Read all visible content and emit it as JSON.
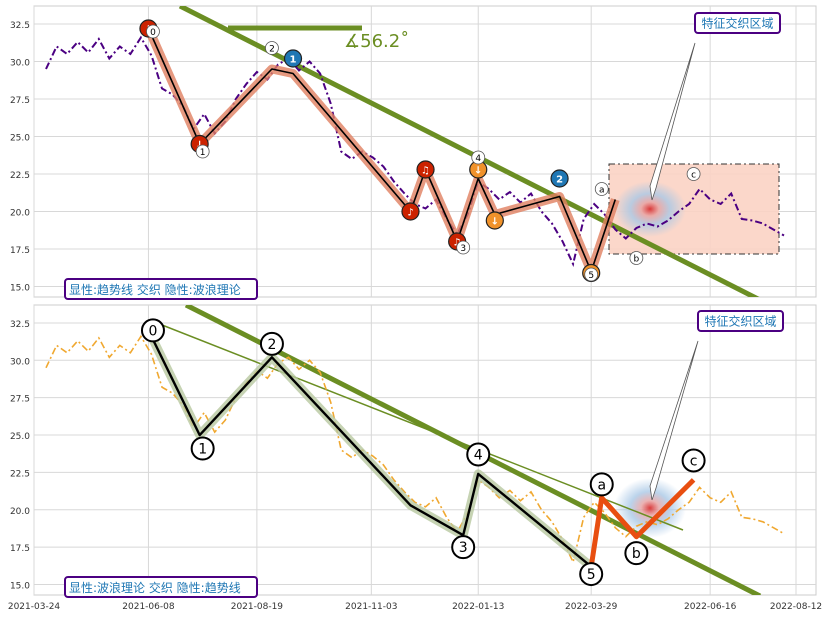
{
  "chart_data": [
    {
      "type": "line",
      "panel": "top",
      "annotation_box": "显性:趋势线 交织 隐性:波浪理论",
      "feature_label": "特征交织区域",
      "angle_label": "∡56.2˚",
      "ylim": [
        14.3,
        33.7
      ],
      "yticks": [
        "15.0",
        "17.5",
        "20.0",
        "22.5",
        "25.0",
        "27.5",
        "30.0",
        "32.5"
      ],
      "series": [
        {
          "color": "#4b0082",
          "style": "dashdot",
          "x": [
            "2021-04-01",
            "2021-04-08",
            "2021-04-15",
            "2021-04-22",
            "2021-04-29",
            "2021-05-06",
            "2021-05-13",
            "2021-05-20",
            "2021-05-27",
            "2021-06-03",
            "2021-06-10",
            "2021-06-17",
            "2021-06-24",
            "2021-07-01",
            "2021-07-08",
            "2021-07-15",
            "2021-07-22",
            "2021-07-29",
            "2021-08-05",
            "2021-08-12",
            "2021-08-19",
            "2021-08-26",
            "2021-09-02",
            "2021-09-09",
            "2021-09-16",
            "2021-09-23",
            "2021-09-30",
            "2021-10-07",
            "2021-10-14",
            "2021-10-21",
            "2021-10-28",
            "2021-11-04",
            "2021-11-11",
            "2021-11-18",
            "2021-11-25",
            "2021-12-02",
            "2021-12-09",
            "2021-12-16",
            "2021-12-23",
            "2021-12-30",
            "2022-01-06",
            "2022-01-13",
            "2022-01-20",
            "2022-01-27",
            "2022-02-03",
            "2022-02-10",
            "2022-02-17",
            "2022-02-24",
            "2022-03-03",
            "2022-03-10",
            "2022-03-17",
            "2022-03-24",
            "2022-03-31",
            "2022-04-07",
            "2022-04-14",
            "2022-04-21",
            "2022-04-28",
            "2022-05-05",
            "2022-05-12",
            "2022-05-19",
            "2022-05-26",
            "2022-06-02",
            "2022-06-09",
            "2022-06-16",
            "2022-06-23",
            "2022-06-30",
            "2022-07-07",
            "2022-07-14",
            "2022-07-21",
            "2022-07-28",
            "2022-08-04"
          ],
          "y": [
            29.5,
            31,
            30.5,
            31.3,
            30.6,
            31.5,
            30.2,
            31,
            30.5,
            31.6,
            30.4,
            28.2,
            27.8,
            27,
            25.5,
            26.5,
            25.2,
            26,
            27.5,
            28.5,
            29.3,
            28.8,
            29.8,
            30.2,
            29.4,
            30,
            29.2,
            27.2,
            24,
            23.5,
            24,
            23.6,
            23,
            22,
            21.2,
            20.5,
            20.2,
            20.8,
            19.5,
            18.5,
            19.8,
            22,
            21.5,
            20.8,
            21.3,
            20.6,
            21.2,
            20,
            19.2,
            18,
            16.5,
            19.5,
            20.5,
            19.8,
            18.8,
            18.2,
            18.9,
            19.2,
            19,
            19.4,
            20,
            20.5,
            21.5,
            20.8,
            20.5,
            21.2,
            19.5,
            19.4,
            19.2,
            18.8,
            18.4
          ]
        }
      ],
      "wave_points": [
        {
          "x": "2021-06-08",
          "y": 32.2
        },
        {
          "x": "2021-07-12",
          "y": 24.5
        },
        {
          "x": "2021-08-29",
          "y": 29.5
        },
        {
          "x": "2021-09-12",
          "y": 29.2
        },
        {
          "x": "2021-11-29",
          "y": 20.0
        },
        {
          "x": "2021-12-09",
          "y": 22.8
        },
        {
          "x": "2021-12-30",
          "y": 18.0
        },
        {
          "x": "2022-01-13",
          "y": 22.2
        },
        {
          "x": "2022-01-24",
          "y": 19.8
        },
        {
          "x": "2022-03-08",
          "y": 21.0
        },
        {
          "x": "2022-03-29",
          "y": 16.0
        },
        {
          "x": "2022-04-14",
          "y": 20.8
        }
      ],
      "badges": [
        {
          "x": "2021-06-08",
          "y": 32.2,
          "icon": "down-arrow-icon",
          "text": "↓",
          "color": "#cc2200"
        },
        {
          "x": "2021-07-12",
          "y": 24.5,
          "icon": "down-arrow-icon",
          "text": "↓",
          "color": "#cc2200"
        },
        {
          "x": "2021-09-12",
          "y": 30.2,
          "icon": "wave-one-badge",
          "text": "1",
          "color": "#1f77b4"
        },
        {
          "x": "2021-11-29",
          "y": 20.0,
          "icon": "music-note-icon",
          "text": "♪",
          "color": "#cc2200"
        },
        {
          "x": "2021-12-09",
          "y": 22.8,
          "icon": "music-note-icon",
          "text": "♫",
          "color": "#cc2200"
        },
        {
          "x": "2021-12-30",
          "y": 18.0,
          "icon": "music-note-icon",
          "text": "♫",
          "color": "#cc2200"
        },
        {
          "x": "2022-01-13",
          "y": 22.8,
          "icon": "down-arrow-icon",
          "text": "↓",
          "color": "#f0922b"
        },
        {
          "x": "2022-01-24",
          "y": 19.4,
          "icon": "down-arrow-icon",
          "text": "↓",
          "color": "#f0922b"
        },
        {
          "x": "2022-03-08",
          "y": 22.2,
          "icon": "wave-two-badge",
          "text": "2",
          "color": "#1f77b4"
        },
        {
          "x": "2022-03-29",
          "y": 15.9,
          "icon": "music-note-icon",
          "text": "♪",
          "color": "#f0922b"
        }
      ],
      "wave_labels": [
        {
          "x": "2021-06-11",
          "y": 32.0,
          "text": "0"
        },
        {
          "x": "2021-07-14",
          "y": 24.0,
          "text": "1"
        },
        {
          "x": "2021-08-29",
          "y": 30.9,
          "text": "2"
        },
        {
          "x": "2022-01-03",
          "y": 17.6,
          "text": "3"
        },
        {
          "x": "2022-01-13",
          "y": 23.6,
          "text": "4"
        },
        {
          "x": "2022-03-29",
          "y": 15.8,
          "text": "5"
        },
        {
          "x": "2022-04-05",
          "y": 21.5,
          "text": "a"
        },
        {
          "x": "2022-04-28",
          "y": 16.9,
          "text": "b"
        },
        {
          "x": "2022-06-05",
          "y": 22.5,
          "text": "c"
        }
      ]
    },
    {
      "type": "line",
      "panel": "bottom",
      "annotation_box": "显性:波浪理论 交织 隐性:趋势线",
      "feature_label": "特征交织区域",
      "ylim": [
        14.3,
        33.7
      ],
      "yticks": [
        "15.0",
        "17.5",
        "20.0",
        "22.5",
        "25.0",
        "27.5",
        "30.0",
        "32.5"
      ],
      "xticks": [
        "2021-03-24",
        "2021-06-08",
        "2021-08-19",
        "2021-11-03",
        "2022-01-13",
        "2022-03-29",
        "2022-06-16",
        "2022-08-12"
      ],
      "series": [
        {
          "color": "#f0a830",
          "style": "dashdot",
          "x": [
            "2021-04-01",
            "2021-04-08",
            "2021-04-15",
            "2021-04-22",
            "2021-04-29",
            "2021-05-06",
            "2021-05-13",
            "2021-05-20",
            "2021-05-27",
            "2021-06-03",
            "2021-06-10",
            "2021-06-17",
            "2021-06-24",
            "2021-07-01",
            "2021-07-08",
            "2021-07-15",
            "2021-07-22",
            "2021-07-29",
            "2021-08-05",
            "2021-08-12",
            "2021-08-19",
            "2021-08-26",
            "2021-09-02",
            "2021-09-09",
            "2021-09-16",
            "2021-09-23",
            "2021-09-30",
            "2021-10-07",
            "2021-10-14",
            "2021-10-21",
            "2021-10-28",
            "2021-11-04",
            "2021-11-11",
            "2021-11-18",
            "2021-11-25",
            "2021-12-02",
            "2021-12-09",
            "2021-12-16",
            "2021-12-23",
            "2021-12-30",
            "2022-01-06",
            "2022-01-13",
            "2022-01-20",
            "2022-01-27",
            "2022-02-03",
            "2022-02-10",
            "2022-02-17",
            "2022-02-24",
            "2022-03-03",
            "2022-03-10",
            "2022-03-17",
            "2022-03-24",
            "2022-03-31",
            "2022-04-07",
            "2022-04-14",
            "2022-04-21",
            "2022-04-28",
            "2022-05-05",
            "2022-05-12",
            "2022-05-19",
            "2022-05-26",
            "2022-06-02",
            "2022-06-09",
            "2022-06-16",
            "2022-06-23",
            "2022-06-30",
            "2022-07-07",
            "2022-07-14",
            "2022-07-21",
            "2022-07-28",
            "2022-08-04"
          ],
          "y": [
            29.5,
            31,
            30.5,
            31.3,
            30.6,
            31.5,
            30.2,
            31,
            30.5,
            31.6,
            30.4,
            28.2,
            27.8,
            27,
            25.5,
            26.5,
            25.2,
            26,
            27.5,
            28.5,
            29.3,
            28.8,
            29.8,
            30.2,
            29.4,
            30,
            29.2,
            27.2,
            24,
            23.5,
            24,
            23.6,
            23,
            22,
            21.2,
            20.5,
            20.2,
            20.8,
            19.5,
            18.5,
            19.8,
            22,
            21.5,
            20.8,
            21.3,
            20.6,
            21.2,
            20,
            19.2,
            18,
            16.5,
            19.5,
            20.5,
            19.8,
            18.8,
            18.2,
            18.9,
            19.2,
            19,
            19.4,
            20,
            20.5,
            21.5,
            20.8,
            20.5,
            21.2,
            19.5,
            19.4,
            19.2,
            18.8,
            18.4
          ]
        }
      ],
      "wave_points": [
        {
          "x": "2021-06-08",
          "y": 32.0
        },
        {
          "x": "2021-07-12",
          "y": 25.0
        },
        {
          "x": "2021-08-29",
          "y": 30.2
        },
        {
          "x": "2021-11-29",
          "y": 20.3
        },
        {
          "x": "2022-01-03",
          "y": 18.3
        },
        {
          "x": "2022-01-13",
          "y": 22.4
        },
        {
          "x": "2022-03-29",
          "y": 16.2
        }
      ],
      "abc_points": [
        {
          "x": "2022-03-29",
          "y": 16.2
        },
        {
          "x": "2022-04-05",
          "y": 20.8
        },
        {
          "x": "2022-04-28",
          "y": 18.2
        },
        {
          "x": "2022-06-05",
          "y": 22.0
        }
      ],
      "wave_labels": [
        {
          "x": "2021-06-11",
          "y": 32.0,
          "text": "0"
        },
        {
          "x": "2021-07-14",
          "y": 24.1,
          "text": "1"
        },
        {
          "x": "2021-08-29",
          "y": 31.1,
          "text": "2"
        },
        {
          "x": "2022-01-03",
          "y": 17.5,
          "text": "3"
        },
        {
          "x": "2022-01-13",
          "y": 23.7,
          "text": "4"
        },
        {
          "x": "2022-03-29",
          "y": 15.7,
          "text": "5"
        },
        {
          "x": "2022-04-05",
          "y": 21.7,
          "text": "a"
        },
        {
          "x": "2022-04-28",
          "y": 17.1,
          "text": "b"
        },
        {
          "x": "2022-06-05",
          "y": 23.3,
          "text": "c"
        }
      ]
    }
  ]
}
